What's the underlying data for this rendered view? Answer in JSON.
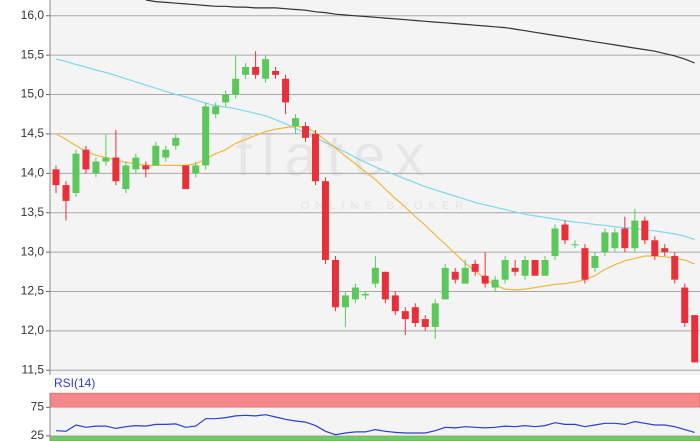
{
  "chart_data": [
    {
      "type": "candlestick",
      "watermark": {
        "logo": "flatex",
        "tagline": "ONLINE BROKER"
      },
      "up_color": "#5cc85c",
      "down_color": "#e8303a",
      "ylim": [
        11.44,
        16.2
      ],
      "yticks": [
        {
          "value": 11.5,
          "label": "11,5"
        },
        {
          "value": 12.0,
          "label": "12,0"
        },
        {
          "value": 12.5,
          "label": "12,5"
        },
        {
          "value": 13.0,
          "label": "13,0"
        },
        {
          "value": 13.5,
          "label": "13,5"
        },
        {
          "value": 14.0,
          "label": "14,0"
        },
        {
          "value": 14.5,
          "label": "14,5"
        },
        {
          "value": 15.0,
          "label": "15,0"
        },
        {
          "value": 15.5,
          "label": "15,5"
        },
        {
          "value": 16.0,
          "label": "16,0"
        }
      ],
      "grid": true,
      "open": [
        14.05,
        13.85,
        13.75,
        14.3,
        14.0,
        14.15,
        14.2,
        13.8,
        14.05,
        14.1,
        14.1,
        14.2,
        14.35,
        14.1,
        14.0,
        14.1,
        14.75,
        14.9,
        15.0,
        15.25,
        15.35,
        15.2,
        15.3,
        15.2,
        14.6,
        14.6,
        14.5,
        13.9,
        12.9,
        12.3,
        12.4,
        12.45,
        12.6,
        12.75,
        12.45,
        12.25,
        12.3,
        12.15,
        12.05,
        12.4,
        12.75,
        12.6,
        12.85,
        12.7,
        12.55,
        12.65,
        12.8,
        12.7,
        12.9,
        12.7,
        12.95,
        13.35,
        13.1,
        13.05,
        12.8,
        13.0,
        13.05,
        13.3,
        13.05,
        13.4,
        13.15,
        13.05,
        12.95,
        12.55,
        12.2
      ],
      "high": [
        14.1,
        13.9,
        14.3,
        14.35,
        14.2,
        14.5,
        14.55,
        14.15,
        14.25,
        14.15,
        14.4,
        14.35,
        14.5,
        14.1,
        14.15,
        14.9,
        14.9,
        15.05,
        15.5,
        15.4,
        15.55,
        15.5,
        15.35,
        15.25,
        14.75,
        14.65,
        14.55,
        13.95,
        12.95,
        12.5,
        12.6,
        12.5,
        12.95,
        12.75,
        12.5,
        12.3,
        12.35,
        12.2,
        12.4,
        12.85,
        12.8,
        12.9,
        12.9,
        13.0,
        12.7,
        12.95,
        12.9,
        12.95,
        12.9,
        12.95,
        13.35,
        13.4,
        13.15,
        13.1,
        13.0,
        13.3,
        13.3,
        13.45,
        13.55,
        13.45,
        13.2,
        13.1,
        13.0,
        12.6,
        12.2
      ],
      "low": [
        13.75,
        13.4,
        13.7,
        14.0,
        13.95,
        14.1,
        13.85,
        13.75,
        14.0,
        13.95,
        14.1,
        14.15,
        14.3,
        13.8,
        13.95,
        14.05,
        14.7,
        14.85,
        14.95,
        15.2,
        15.2,
        15.15,
        15.2,
        14.75,
        14.5,
        14.4,
        13.85,
        12.85,
        12.25,
        12.05,
        12.35,
        12.4,
        12.55,
        12.35,
        12.2,
        11.95,
        12.05,
        12.0,
        11.9,
        12.4,
        12.6,
        12.6,
        12.7,
        12.55,
        12.5,
        12.6,
        12.7,
        12.65,
        12.7,
        12.7,
        12.9,
        13.1,
        13.05,
        12.6,
        12.75,
        12.95,
        13.0,
        13.0,
        13.0,
        13.1,
        12.9,
        12.95,
        12.6,
        12.05,
        11.6
      ],
      "close": [
        13.85,
        13.65,
        14.25,
        14.05,
        14.15,
        14.2,
        13.9,
        14.1,
        14.2,
        14.05,
        14.35,
        14.3,
        14.45,
        13.8,
        14.1,
        14.85,
        14.85,
        15.0,
        15.2,
        15.35,
        15.25,
        15.45,
        15.25,
        14.9,
        14.7,
        14.45,
        13.9,
        12.9,
        12.3,
        12.45,
        12.55,
        12.47,
        12.8,
        12.4,
        12.25,
        12.15,
        12.1,
        12.05,
        12.35,
        12.8,
        12.65,
        12.8,
        12.75,
        12.6,
        12.65,
        12.9,
        12.75,
        12.9,
        12.7,
        12.9,
        13.3,
        13.15,
        13.1,
        12.65,
        12.95,
        13.25,
        13.25,
        13.05,
        13.4,
        13.15,
        12.95,
        13.0,
        12.65,
        12.1,
        11.6
      ],
      "overlays": [
        {
          "color": "#333333",
          "values": [
            null,
            null,
            null,
            null,
            null,
            null,
            null,
            null,
            null,
            16.2,
            16.18,
            16.17,
            16.16,
            16.15,
            16.14,
            16.13,
            16.12,
            16.12,
            16.11,
            16.11,
            16.1,
            16.1,
            16.1,
            16.09,
            16.08,
            16.07,
            16.05,
            16.04,
            16.02,
            16.01,
            16.0,
            15.99,
            15.98,
            15.97,
            15.96,
            15.95,
            15.94,
            15.93,
            15.92,
            15.91,
            15.9,
            15.89,
            15.88,
            15.87,
            15.86,
            15.85,
            15.83,
            15.81,
            15.79,
            15.77,
            15.75,
            15.73,
            15.71,
            15.69,
            15.67,
            15.65,
            15.63,
            15.61,
            15.59,
            15.57,
            15.55,
            15.52,
            15.49,
            15.45,
            15.4
          ]
        },
        {
          "color": "#7fd8ec",
          "values": [
            15.45,
            15.42,
            15.38,
            15.35,
            15.31,
            15.28,
            15.24,
            15.2,
            15.16,
            15.12,
            15.08,
            15.04,
            15.0,
            14.97,
            14.93,
            14.89,
            14.86,
            14.84,
            14.82,
            14.79,
            14.76,
            14.73,
            14.68,
            14.63,
            14.57,
            14.51,
            14.45,
            14.39,
            14.33,
            14.27,
            14.2,
            14.14,
            14.08,
            14.03,
            13.98,
            13.93,
            13.88,
            13.83,
            13.79,
            13.75,
            13.71,
            13.67,
            13.63,
            13.6,
            13.57,
            13.54,
            13.51,
            13.48,
            13.46,
            13.44,
            13.42,
            13.4,
            13.38,
            13.37,
            13.35,
            13.34,
            13.32,
            13.31,
            13.3,
            13.28,
            13.27,
            13.25,
            13.23,
            13.2,
            13.16
          ]
        },
        {
          "color": "#f0b840",
          "values": [
            14.5,
            14.43,
            14.35,
            14.28,
            14.23,
            14.2,
            14.17,
            14.14,
            14.12,
            14.1,
            14.1,
            14.1,
            14.1,
            14.1,
            14.12,
            14.18,
            14.25,
            14.3,
            14.38,
            14.43,
            14.48,
            14.53,
            14.56,
            14.58,
            14.6,
            14.58,
            14.52,
            14.42,
            14.32,
            14.22,
            14.12,
            14.02,
            13.92,
            13.8,
            13.68,
            13.57,
            13.45,
            13.34,
            13.22,
            13.1,
            12.98,
            12.86,
            12.76,
            12.66,
            12.58,
            12.53,
            12.52,
            12.53,
            12.55,
            12.57,
            12.59,
            12.6,
            12.62,
            12.65,
            12.7,
            12.78,
            12.84,
            12.89,
            12.92,
            12.95,
            12.95,
            12.94,
            12.92,
            12.9,
            12.85
          ]
        }
      ]
    },
    {
      "type": "line",
      "title": "RSI(14)",
      "ylim": [
        16,
        100
      ],
      "yticks": [
        25,
        75
      ],
      "bands": [
        {
          "range": [
            75,
            100
          ],
          "color": "#f4878a"
        },
        {
          "range": [
            0,
            25
          ],
          "color": "#6ccc6c"
        }
      ],
      "color": "#2a3fd0",
      "values": [
        34,
        33,
        44,
        40,
        42,
        42,
        38,
        41,
        43,
        42,
        45,
        45,
        46,
        40,
        42,
        55,
        55,
        57,
        60,
        61,
        60,
        62,
        58,
        54,
        51,
        49,
        43,
        33,
        27,
        30,
        32,
        32,
        36,
        33,
        31,
        30,
        30,
        30,
        34,
        40,
        39,
        41,
        40,
        39,
        40,
        42,
        41,
        43,
        41,
        43,
        48,
        45,
        45,
        41,
        44,
        47,
        47,
        45,
        50,
        47,
        44,
        44,
        41,
        36,
        31
      ]
    }
  ]
}
